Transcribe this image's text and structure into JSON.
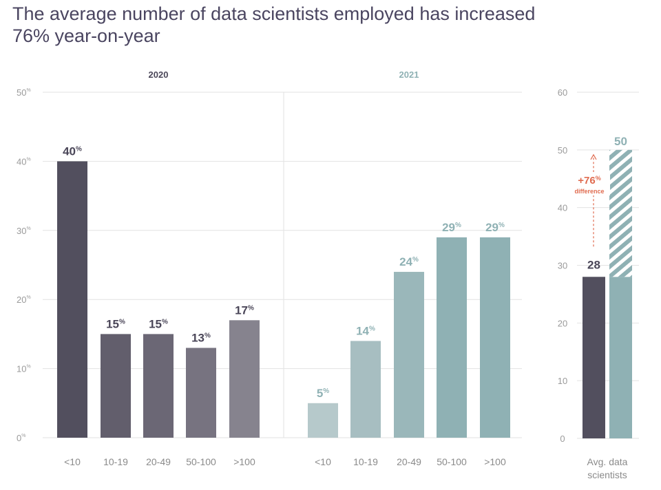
{
  "title": {
    "line1": "The average number of data scientists employed has increased",
    "line2": "76% year-on-year"
  },
  "colors": {
    "dark": "#524f5e",
    "teal": "#8fb1b4",
    "grid": "#e2e2e2",
    "annotation": "#e06b4f"
  },
  "chart_data": [
    {
      "type": "bar",
      "title": "2020",
      "categories": [
        "<10",
        "10-19",
        "20-49",
        "50-100",
        ">100"
      ],
      "values": [
        40,
        15,
        15,
        13,
        17
      ],
      "value_suffix": "%",
      "ylim": [
        0,
        50
      ],
      "yticks": [
        0,
        10,
        20,
        30,
        40,
        50
      ],
      "grid": true,
      "colors": [
        "#524f5e",
        "#625e6c",
        "#6b6775",
        "#777380",
        "#86838e"
      ],
      "label_color": "#4a4658"
    },
    {
      "type": "bar",
      "title": "2021",
      "categories": [
        "<10",
        "10-19",
        "20-49",
        "50-100",
        ">100"
      ],
      "values": [
        5,
        14,
        24,
        29,
        29
      ],
      "value_suffix": "%",
      "ylim": [
        0,
        50
      ],
      "grid": true,
      "colors": [
        "#b6c9cb",
        "#a7bec1",
        "#9ab7ba",
        "#8fb1b4",
        "#8fb1b4"
      ],
      "label_color": "#8fb1b4"
    },
    {
      "type": "bar",
      "title": "",
      "xlabel": [
        "Avg. data",
        "scientists"
      ],
      "series": [
        {
          "name": "2020",
          "values": [
            28
          ]
        },
        {
          "name": "2021",
          "values": [
            50
          ]
        }
      ],
      "ylim": [
        0,
        60
      ],
      "yticks": [
        0,
        10,
        20,
        30,
        40,
        50,
        60
      ],
      "grid": true,
      "annotation": {
        "line1": "+76%",
        "line2": "difference"
      }
    }
  ]
}
